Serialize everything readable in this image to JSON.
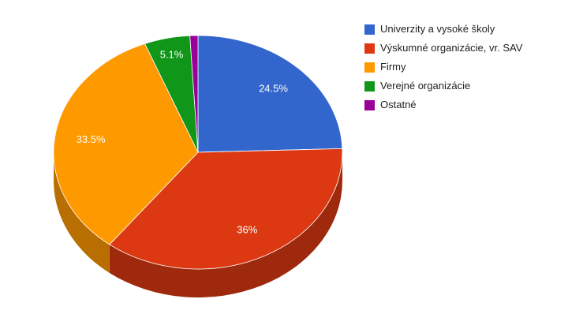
{
  "chart_data": {
    "type": "pie",
    "categories": [
      "Univerzity a vysoké školy",
      "Výskumné organizácie, vr. SAV",
      "Firmy",
      "Verejné organizácie",
      "Ostatné"
    ],
    "values": [
      24.5,
      36,
      33.5,
      5.1,
      0.9
    ],
    "value_labels": [
      "24.5%",
      "36%",
      "33.5%",
      "5.1%",
      null
    ],
    "colors": [
      "#3366cc",
      "#dc3912",
      "#ff9900",
      "#109618",
      "#990099"
    ],
    "legend": "right"
  }
}
